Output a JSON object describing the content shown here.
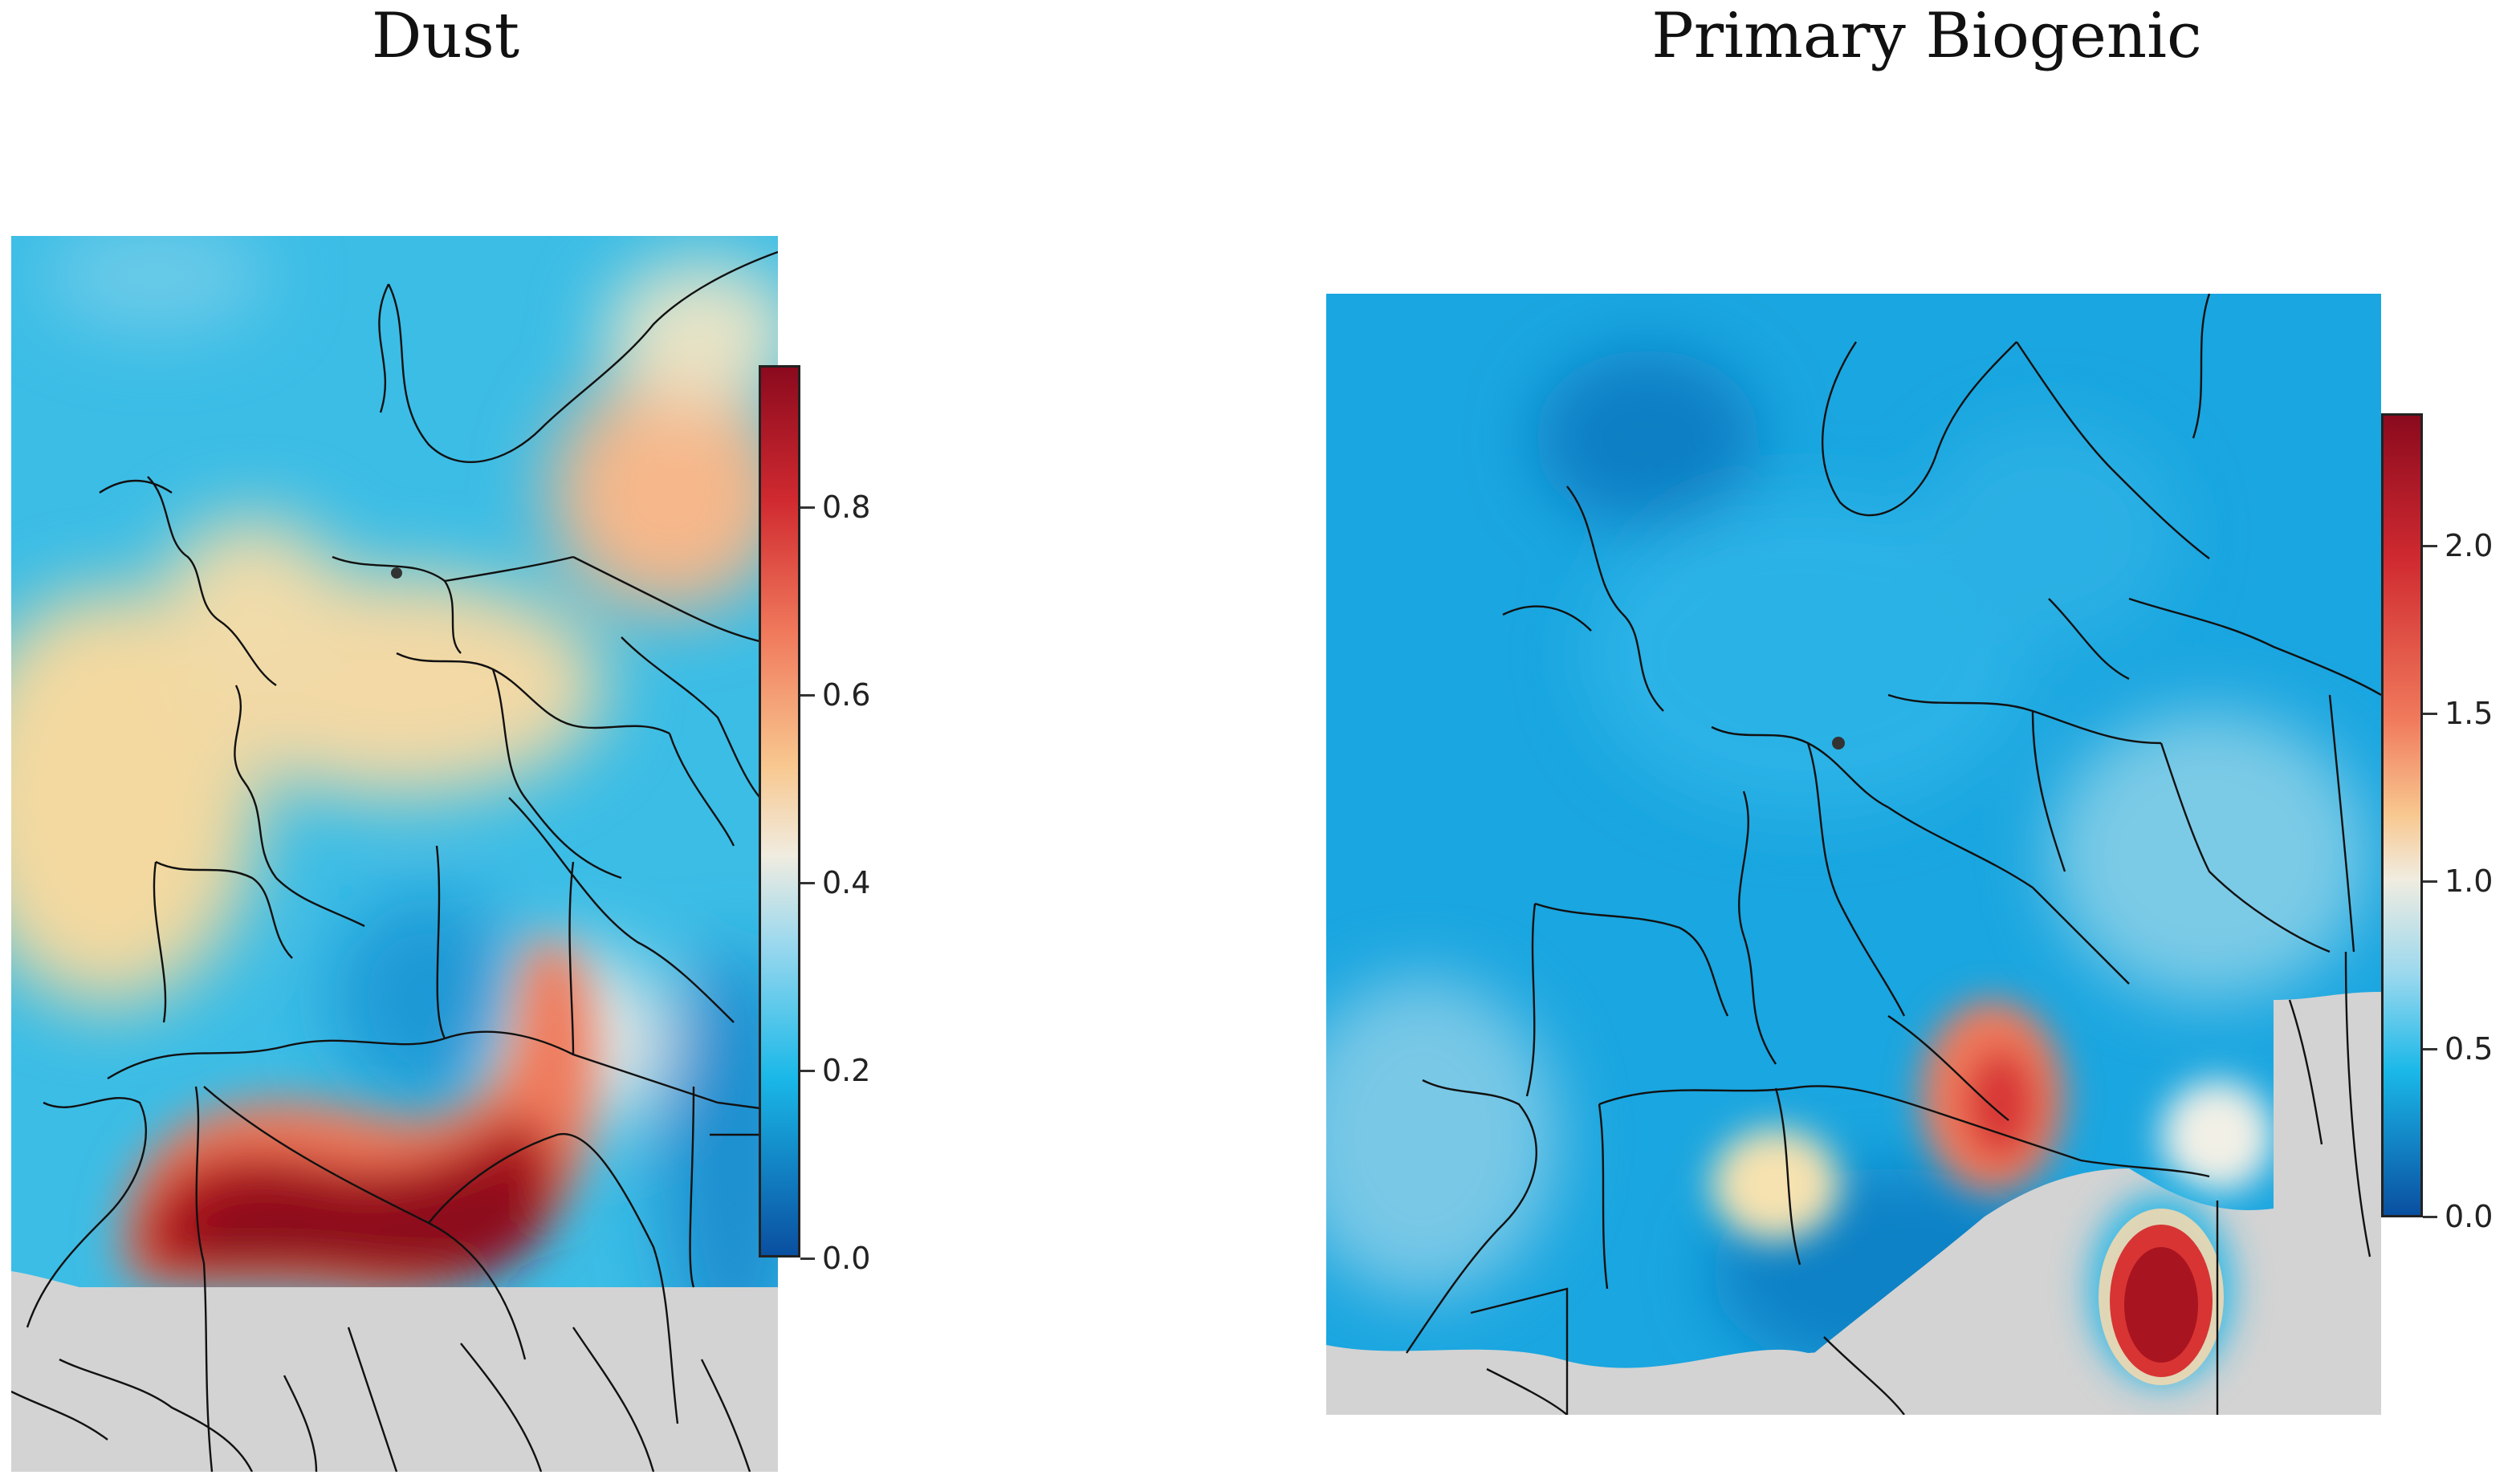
{
  "panels": [
    {
      "title": "Dust",
      "colorbar": {
        "min": 0.0,
        "max": 0.95,
        "ticks": [
          "0.0",
          "0.2",
          "0.4",
          "0.6",
          "0.8"
        ],
        "tick_values": [
          0.0,
          0.2,
          0.4,
          0.6,
          0.8
        ]
      }
    },
    {
      "title": "Primary Biogenic",
      "colorbar": {
        "min": 0.0,
        "max": 2.4,
        "ticks": [
          "0.0",
          "0.5",
          "1.0",
          "1.5",
          "2.0"
        ],
        "tick_values": [
          0.0,
          0.5,
          1.0,
          1.5,
          2.0
        ]
      }
    }
  ],
  "colors": {
    "no_data": "#d3d3d3",
    "scale_low": "#0a4fa0",
    "scale_mid_low": "#1ab8e8",
    "scale_mid": "#f0f0e8",
    "scale_mid_high": "#f59a6b",
    "scale_high": "#8b0a1e",
    "borders": "#111111"
  },
  "icons": {
    "site_marker": "dot"
  }
}
